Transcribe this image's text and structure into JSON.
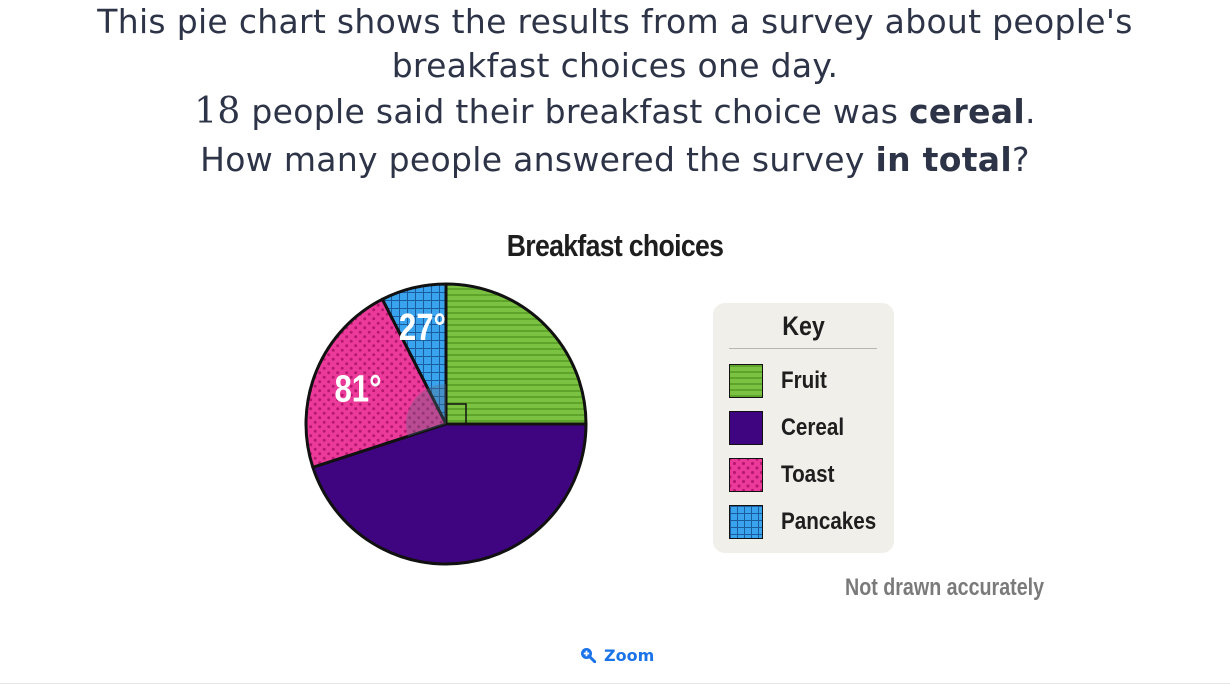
{
  "question": {
    "line1": "This pie chart shows the results from a survey about people's",
    "line2": "breakfast choices one day.",
    "line3_num": "18",
    "line3_pre": " people said their breakfast choice was ",
    "line3_bold": "cereal",
    "line3_post": ".",
    "line4_pre": "How many people answered the survey ",
    "line4_bold": "in total",
    "line4_post": "?"
  },
  "chart_data": {
    "type": "pie",
    "title": "Breakfast choices",
    "slices": [
      {
        "name": "Fruit",
        "degrees": 90,
        "label": "",
        "color": "#7cc242",
        "pattern": "horizontal-stripes"
      },
      {
        "name": "Cereal",
        "degrees": 162,
        "label": "",
        "color": "#3f0580",
        "pattern": "solid"
      },
      {
        "name": "Toast",
        "degrees": 81,
        "label": "81°",
        "color": "#ec3a9b",
        "pattern": "dots"
      },
      {
        "name": "Pancakes",
        "degrees": 27,
        "label": "27°",
        "color": "#3aa3ee",
        "pattern": "grid"
      }
    ],
    "right_angle_marker": "Fruit",
    "legend": {
      "title": "Key",
      "placement": "right"
    },
    "note": "Not drawn accurately"
  },
  "zoom": {
    "label": "Zoom",
    "icon": "zoom-in-icon",
    "color": "#1a73e8"
  }
}
